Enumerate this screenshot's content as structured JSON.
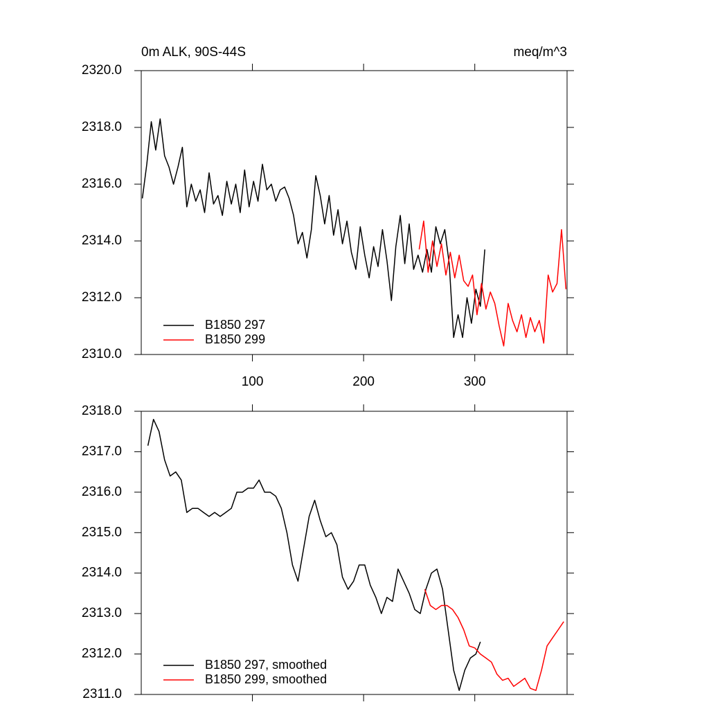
{
  "chart_data": [
    {
      "type": "line",
      "title": "0m ALK, 90S-44S",
      "units_label": "meq/m^3",
      "xlim": [
        0,
        383
      ],
      "xticks": [
        100,
        200,
        300
      ],
      "xtick_labels": true,
      "ylim": [
        2310,
        2320
      ],
      "yticks": [
        {
          "value": 2310,
          "label": "2310.0"
        },
        {
          "value": 2312,
          "label": "2312.0"
        },
        {
          "value": 2314,
          "label": "2314.0"
        },
        {
          "value": 2316,
          "label": "2316.0"
        },
        {
          "value": 2318,
          "label": "2318.0"
        },
        {
          "value": 2320,
          "label": "2320.0"
        }
      ],
      "series": [
        {
          "name": "B1850 297",
          "color": "#000000",
          "x": [
            1,
            5,
            9,
            13,
            17,
            21,
            25,
            29,
            33,
            37,
            41,
            45,
            49,
            53,
            57,
            61,
            65,
            69,
            73,
            77,
            81,
            85,
            89,
            93,
            97,
            101,
            105,
            109,
            113,
            117,
            121,
            125,
            129,
            133,
            137,
            141,
            145,
            149,
            153,
            157,
            161,
            165,
            169,
            173,
            177,
            181,
            185,
            189,
            193,
            197,
            201,
            205,
            209,
            213,
            217,
            221,
            225,
            229,
            233,
            237,
            241,
            245,
            249,
            253,
            257,
            261,
            265,
            269,
            273,
            277,
            281,
            285,
            289,
            293,
            297,
            301,
            305,
            309
          ],
          "values": [
            2315.5,
            2316.7,
            2318.2,
            2317.2,
            2318.3,
            2317.0,
            2316.6,
            2316.0,
            2316.6,
            2317.3,
            2315.2,
            2316.0,
            2315.4,
            2315.8,
            2315.0,
            2316.4,
            2315.3,
            2315.6,
            2314.9,
            2316.1,
            2315.3,
            2316.0,
            2315.0,
            2316.5,
            2315.2,
            2316.1,
            2315.4,
            2316.7,
            2315.8,
            2316.0,
            2315.4,
            2315.8,
            2315.9,
            2315.5,
            2314.9,
            2313.9,
            2314.3,
            2313.4,
            2314.4,
            2316.3,
            2315.6,
            2314.6,
            2315.6,
            2314.2,
            2315.1,
            2313.9,
            2314.7,
            2313.6,
            2313.0,
            2314.5,
            2313.5,
            2312.7,
            2313.8,
            2313.1,
            2314.4,
            2313.3,
            2311.9,
            2313.8,
            2314.9,
            2313.2,
            2314.6,
            2313.0,
            2313.5,
            2312.9,
            2313.7,
            2312.9,
            2314.5,
            2313.9,
            2314.4,
            2313.2,
            2310.6,
            2311.4,
            2310.6,
            2312.0,
            2311.1,
            2312.3,
            2311.7,
            2313.7
          ]
        },
        {
          "name": "B1850 299",
          "color": "#ff0000",
          "x": [
            250,
            254,
            258,
            262,
            266,
            270,
            274,
            278,
            282,
            286,
            290,
            294,
            298,
            302,
            306,
            310,
            314,
            318,
            322,
            326,
            330,
            334,
            338,
            342,
            346,
            350,
            354,
            358,
            362,
            366,
            370,
            374,
            378,
            382
          ],
          "values": [
            2313.7,
            2314.7,
            2312.9,
            2314.0,
            2313.1,
            2313.9,
            2312.8,
            2313.6,
            2312.7,
            2313.5,
            2312.6,
            2312.4,
            2312.8,
            2311.4,
            2312.5,
            2311.6,
            2312.2,
            2311.8,
            2311.0,
            2310.3,
            2311.8,
            2311.2,
            2310.8,
            2311.4,
            2310.6,
            2311.3,
            2310.8,
            2311.2,
            2310.4,
            2312.8,
            2312.2,
            2312.5,
            2314.4,
            2312.3
          ]
        }
      ]
    },
    {
      "type": "line",
      "xlim": [
        0,
        383
      ],
      "xticks": [
        100,
        200,
        300
      ],
      "xtick_labels": false,
      "ylim": [
        2311,
        2318
      ],
      "yticks": [
        {
          "value": 2311,
          "label": "2311.0"
        },
        {
          "value": 2312,
          "label": "2312.0"
        },
        {
          "value": 2313,
          "label": "2313.0"
        },
        {
          "value": 2314,
          "label": "2314.0"
        },
        {
          "value": 2315,
          "label": "2315.0"
        },
        {
          "value": 2316,
          "label": "2316.0"
        },
        {
          "value": 2317,
          "label": "2317.0"
        },
        {
          "value": 2318,
          "label": "2318.0"
        }
      ],
      "series": [
        {
          "name": "B1850 297, smoothed",
          "color": "#000000",
          "x": [
            6,
            11,
            16,
            21,
            26,
            31,
            36,
            41,
            46,
            51,
            56,
            61,
            66,
            71,
            76,
            81,
            86,
            91,
            96,
            101,
            106,
            111,
            116,
            121,
            126,
            131,
            136,
            141,
            146,
            151,
            156,
            161,
            166,
            171,
            176,
            181,
            186,
            191,
            196,
            201,
            206,
            211,
            216,
            221,
            226,
            231,
            236,
            241,
            246,
            251,
            256,
            261,
            266,
            271,
            276,
            281,
            286,
            291,
            296,
            301,
            305
          ],
          "values": [
            2317.15,
            2317.8,
            2317.5,
            2316.8,
            2316.4,
            2316.5,
            2316.3,
            2315.5,
            2315.6,
            2315.6,
            2315.5,
            2315.4,
            2315.5,
            2315.4,
            2315.5,
            2315.6,
            2316.0,
            2316.0,
            2316.1,
            2316.1,
            2316.3,
            2316.0,
            2316.0,
            2315.9,
            2315.6,
            2315.0,
            2314.2,
            2313.8,
            2314.6,
            2315.4,
            2315.8,
            2315.3,
            2314.9,
            2315.0,
            2314.7,
            2313.9,
            2313.6,
            2313.8,
            2314.2,
            2314.2,
            2313.7,
            2313.4,
            2313.0,
            2313.4,
            2313.3,
            2314.1,
            2313.8,
            2313.5,
            2313.1,
            2313.0,
            2313.6,
            2314.0,
            2314.1,
            2313.6,
            2312.6,
            2311.6,
            2311.1,
            2311.6,
            2311.9,
            2312.0,
            2312.3
          ]
        },
        {
          "name": "B1850 299, smoothed",
          "color": "#ff0000",
          "x": [
            255,
            260,
            265,
            270,
            275,
            280,
            285,
            290,
            295,
            300,
            305,
            310,
            315,
            320,
            325,
            330,
            335,
            340,
            345,
            350,
            355,
            360,
            365,
            370,
            375,
            380
          ],
          "values": [
            2313.6,
            2313.2,
            2313.1,
            2313.2,
            2313.2,
            2313.1,
            2312.9,
            2312.6,
            2312.2,
            2312.15,
            2312.0,
            2311.9,
            2311.8,
            2311.5,
            2311.35,
            2311.4,
            2311.2,
            2311.3,
            2311.4,
            2311.15,
            2311.1,
            2311.6,
            2312.2,
            2312.4,
            2312.6,
            2312.8
          ]
        }
      ]
    }
  ]
}
